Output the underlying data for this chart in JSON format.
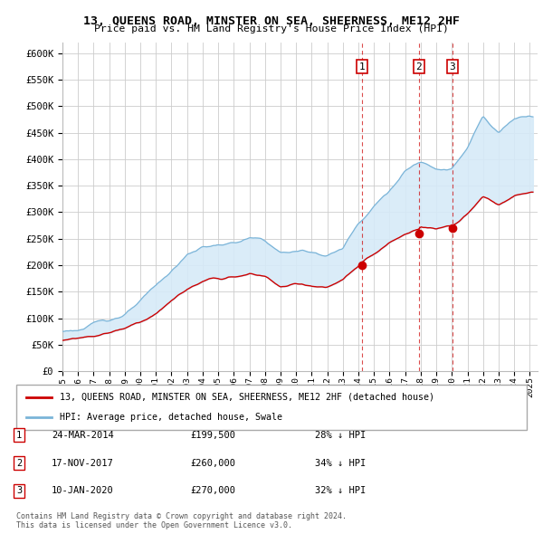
{
  "title": "13, QUEENS ROAD, MINSTER ON SEA, SHEERNESS, ME12 2HF",
  "subtitle": "Price paid vs. HM Land Registry's House Price Index (HPI)",
  "legend_line1": "13, QUEENS ROAD, MINSTER ON SEA, SHEERNESS, ME12 2HF (detached house)",
  "legend_line2": "HPI: Average price, detached house, Swale",
  "footer": "Contains HM Land Registry data © Crown copyright and database right 2024.\nThis data is licensed under the Open Government Licence v3.0.",
  "transactions": [
    {
      "num": 1,
      "date": "24-MAR-2014",
      "price": "£199,500",
      "pct": "28% ↓ HPI",
      "year": 2014.23,
      "price_val": 199500
    },
    {
      "num": 2,
      "date": "17-NOV-2017",
      "price": "£260,000",
      "pct": "34% ↓ HPI",
      "year": 2017.88,
      "price_val": 260000
    },
    {
      "num": 3,
      "date": "10-JAN-2020",
      "price": "£270,000",
      "pct": "32% ↓ HPI",
      "year": 2020.04,
      "price_val": 270000
    }
  ],
  "ylim": [
    0,
    620000
  ],
  "xlim": [
    1995.0,
    2025.5
  ],
  "hpi_color": "#7ab4d8",
  "hpi_fill_color": "#d6eaf8",
  "price_color": "#cc0000",
  "grid_color": "#cccccc",
  "background_color": "#ffffff",
  "vline_color": "#cc0000",
  "marker_color": "#cc0000",
  "title_fontsize": 9.5,
  "subtitle_fontsize": 8.5
}
